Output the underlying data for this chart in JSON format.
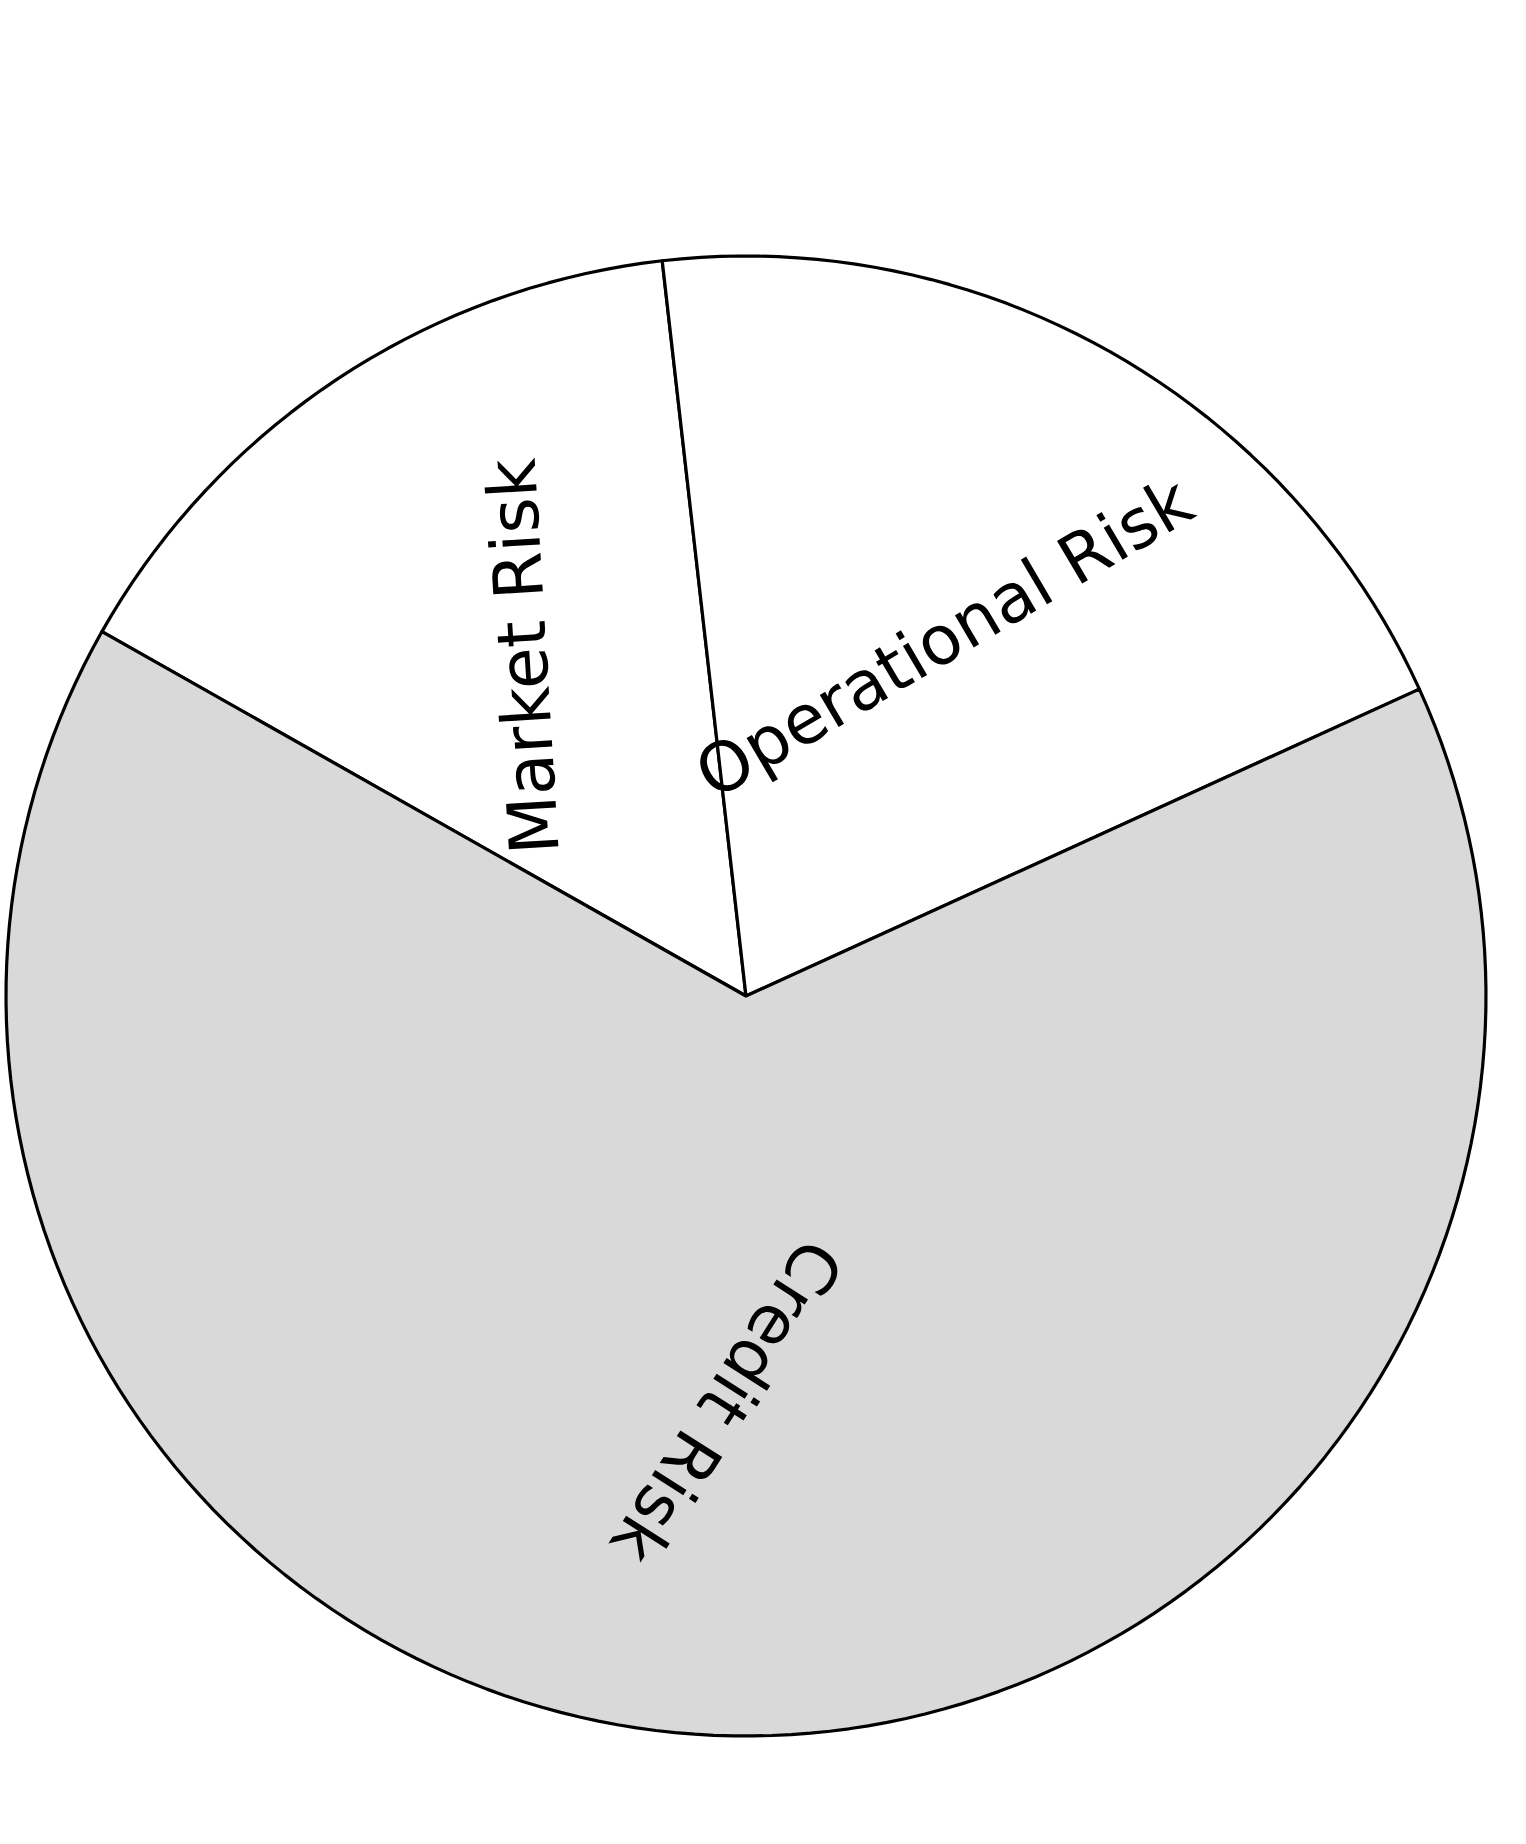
{
  "chart_data": {
    "type": "pie",
    "categories": [
      "Market Risk",
      "Operational Risk",
      "Credit Risk"
    ],
    "values": [
      15,
      20,
      65
    ],
    "colors": [
      "#ffffff",
      "#ffffff",
      "#d9d9d9"
    ]
  }
}
